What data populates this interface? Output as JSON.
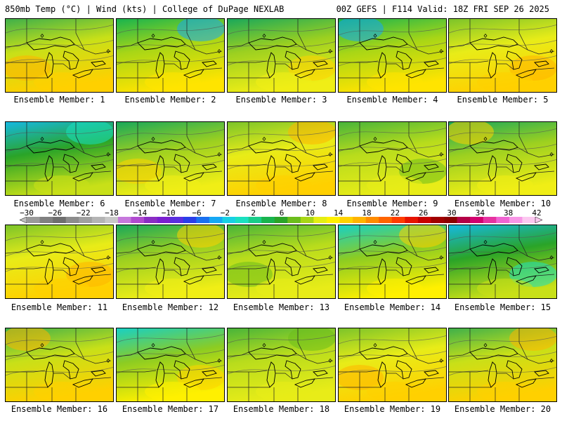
{
  "header": {
    "left": "850mb Temp (°C) | Wind (kts) | College of DuPage NEXLAB",
    "right": "00Z GEFS | F114 Valid: 18Z FRI SEP 26 2025"
  },
  "colorbar": {
    "labels": [
      "-30",
      "-26",
      "-22",
      "-18",
      "-14",
      "-10",
      "-6",
      "-2",
      "2",
      "6",
      "10",
      "14",
      "18",
      "22",
      "26",
      "30",
      "34",
      "38",
      "42"
    ],
    "colors": [
      "#9a9a9a",
      "#808080",
      "#6e6e6e",
      "#8c8c8c",
      "#a0a0a0",
      "#b4b4b4",
      "#c8c8c8",
      "#c678dc",
      "#b04ad0",
      "#8a2dc4",
      "#7a1fd0",
      "#5a2ee0",
      "#2a3ee8",
      "#1a70f0",
      "#16a8f4",
      "#18d0e4",
      "#1ae0c0",
      "#19cd8a",
      "#19b44e",
      "#2aa428",
      "#6cbd1c",
      "#a8d616",
      "#e4ee14",
      "#fff000",
      "#ffd200",
      "#ffb400",
      "#ff8c00",
      "#ff6400",
      "#ff3c00",
      "#e61400",
      "#c80000",
      "#a00000",
      "#8c0000",
      "#b40046",
      "#d2006e",
      "#e632a0",
      "#f064d2",
      "#f896e6",
      "#fcc8f0"
    ]
  },
  "members": [
    {
      "label": "Ensemble Member: 1",
      "scheme": "warm-north"
    },
    {
      "label": "Ensemble Member: 2",
      "scheme": "cool-ne"
    },
    {
      "label": "Ensemble Member: 3",
      "scheme": "green-north"
    },
    {
      "label": "Ensemble Member: 4",
      "scheme": "cool-ne"
    },
    {
      "label": "Ensemble Member: 5",
      "scheme": "warm"
    },
    {
      "label": "Ensemble Member: 6",
      "scheme": "cold"
    },
    {
      "label": "Ensemble Member: 7",
      "scheme": "green-north"
    },
    {
      "label": "Ensemble Member: 8",
      "scheme": "warm"
    },
    {
      "label": "Ensemble Member: 9",
      "scheme": "green-mid"
    },
    {
      "label": "Ensemble Member: 10",
      "scheme": "green-north"
    },
    {
      "label": "Ensemble Member: 11",
      "scheme": "warm"
    },
    {
      "label": "Ensemble Member: 12",
      "scheme": "green-north"
    },
    {
      "label": "Ensemble Member: 13",
      "scheme": "green-mid"
    },
    {
      "label": "Ensemble Member: 14",
      "scheme": "cool-north"
    },
    {
      "label": "Ensemble Member: 15",
      "scheme": "cold"
    },
    {
      "label": "Ensemble Member: 16",
      "scheme": "warm-north"
    },
    {
      "label": "Ensemble Member: 17",
      "scheme": "cool-north"
    },
    {
      "label": "Ensemble Member: 18",
      "scheme": "green-mid"
    },
    {
      "label": "Ensemble Member: 19",
      "scheme": "warm"
    },
    {
      "label": "Ensemble Member: 20",
      "scheme": "warm-north"
    }
  ]
}
